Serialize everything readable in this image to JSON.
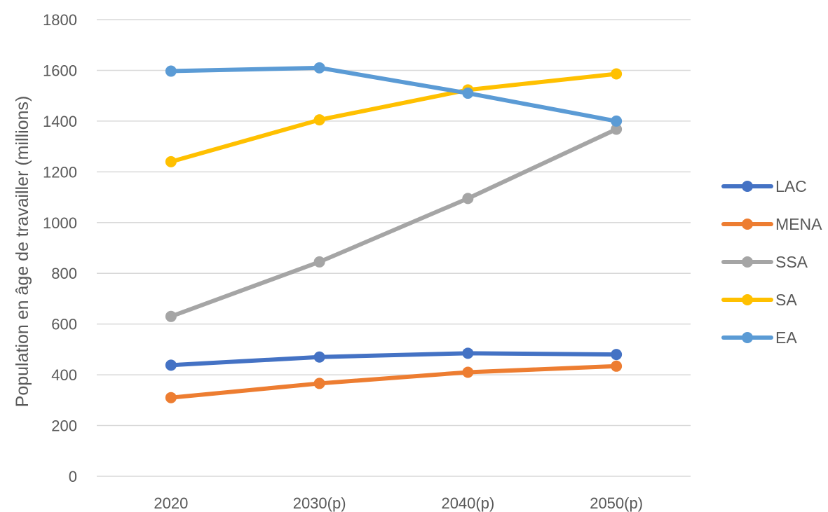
{
  "chart_data": {
    "type": "line",
    "xlabel": "",
    "ylabel": "Population en âge de travailler (millions)",
    "categories": [
      "2020",
      "2030(p)",
      "2040(p)",
      "2050(p)"
    ],
    "ylim": [
      0,
      1800
    ],
    "yticks": [
      0,
      200,
      400,
      600,
      800,
      1000,
      1200,
      1400,
      1600,
      1800
    ],
    "grid": true,
    "legend_position": "right",
    "series": [
      {
        "name": "LAC",
        "color": "#4472c4",
        "values": [
          438,
          470,
          485,
          480
        ]
      },
      {
        "name": "MENA",
        "color": "#ed7d31",
        "values": [
          310,
          366,
          410,
          434
        ]
      },
      {
        "name": "SSA",
        "color": "#a5a5a5",
        "values": [
          630,
          845,
          1095,
          1368
        ]
      },
      {
        "name": "SA",
        "color": "#ffc000",
        "values": [
          1240,
          1405,
          1523,
          1586
        ]
      },
      {
        "name": "EA",
        "color": "#5b9bd5",
        "values": [
          1597,
          1610,
          1510,
          1400
        ]
      }
    ]
  }
}
